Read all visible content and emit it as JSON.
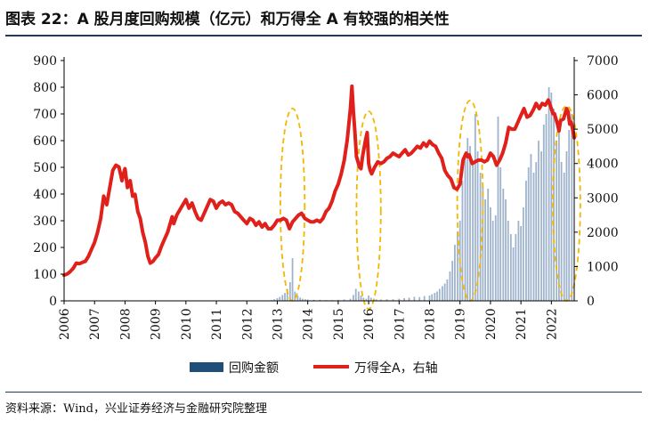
{
  "title": "图表 22：A 股月度回购规模（亿元）和万得全 A 有较强的相关性",
  "source": "资料来源：Wind，兴业证券经济与金融研究院整理",
  "colors": {
    "bars": "#9fb4cc",
    "legend_bar": "#1f4e79",
    "line": "#e0201b",
    "ellipse": "#f2b800",
    "rule": "#1f3864"
  },
  "chart_data": {
    "type": "bar+line",
    "x_ticks": [
      "2006",
      "2007",
      "2008",
      "2009",
      "2010",
      "2011",
      "2012",
      "2013",
      "2014",
      "2015",
      "2016",
      "2017",
      "2018",
      "2019",
      "2020",
      "2021",
      "2022"
    ],
    "y_left_ticks": [
      "0",
      "100",
      "200",
      "300",
      "400",
      "500",
      "600",
      "700",
      "800",
      "900"
    ],
    "y_right_ticks": [
      "0",
      "1000",
      "2000",
      "3000",
      "4000",
      "5000",
      "6000",
      "7000"
    ],
    "ylim_left": [
      0,
      900
    ],
    "ylim_right": [
      0,
      7000
    ],
    "xlim": [
      2006.0,
      2022.75
    ],
    "legend": {
      "position": "bottom",
      "bar_label": "回购金额",
      "line_label": "万得全A，右轴"
    },
    "series_bar": {
      "name": "回购金额",
      "axis": "left",
      "points": [
        [
          2012.8,
          3
        ],
        [
          2012.9,
          6
        ],
        [
          2013.0,
          10
        ],
        [
          2013.08,
          15
        ],
        [
          2013.17,
          22
        ],
        [
          2013.25,
          30
        ],
        [
          2013.33,
          45
        ],
        [
          2013.42,
          70
        ],
        [
          2013.5,
          160
        ],
        [
          2013.58,
          35
        ],
        [
          2013.67,
          20
        ],
        [
          2013.75,
          12
        ],
        [
          2013.83,
          8
        ],
        [
          2013.92,
          6
        ],
        [
          2014.0,
          5
        ],
        [
          2014.2,
          4
        ],
        [
          2014.4,
          4
        ],
        [
          2014.6,
          3
        ],
        [
          2014.8,
          3
        ],
        [
          2015.0,
          4
        ],
        [
          2015.2,
          5
        ],
        [
          2015.4,
          8
        ],
        [
          2015.5,
          22
        ],
        [
          2015.58,
          45
        ],
        [
          2015.67,
          35
        ],
        [
          2015.75,
          20
        ],
        [
          2015.83,
          12
        ],
        [
          2015.92,
          8
        ],
        [
          2016.0,
          20
        ],
        [
          2016.08,
          12
        ],
        [
          2016.17,
          8
        ],
        [
          2016.25,
          6
        ],
        [
          2016.4,
          5
        ],
        [
          2016.6,
          6
        ],
        [
          2016.8,
          6
        ],
        [
          2017.0,
          8
        ],
        [
          2017.17,
          10
        ],
        [
          2017.33,
          12
        ],
        [
          2017.5,
          15
        ],
        [
          2017.67,
          14
        ],
        [
          2017.83,
          18
        ],
        [
          2018.0,
          20
        ],
        [
          2018.08,
          25
        ],
        [
          2018.17,
          30
        ],
        [
          2018.25,
          35
        ],
        [
          2018.33,
          45
        ],
        [
          2018.42,
          55
        ],
        [
          2018.5,
          65
        ],
        [
          2018.58,
          80
        ],
        [
          2018.67,
          110
        ],
        [
          2018.75,
          150
        ],
        [
          2018.83,
          210
        ],
        [
          2018.92,
          260
        ],
        [
          2019.0,
          300
        ],
        [
          2019.08,
          450
        ],
        [
          2019.17,
          540
        ],
        [
          2019.25,
          610
        ],
        [
          2019.33,
          580
        ],
        [
          2019.42,
          520
        ],
        [
          2019.5,
          700
        ],
        [
          2019.58,
          560
        ],
        [
          2019.67,
          480
        ],
        [
          2019.75,
          430
        ],
        [
          2019.83,
          380
        ],
        [
          2019.92,
          420
        ],
        [
          2020.0,
          350
        ],
        [
          2020.08,
          300
        ],
        [
          2020.17,
          320
        ],
        [
          2020.25,
          690
        ],
        [
          2020.33,
          500
        ],
        [
          2020.42,
          420
        ],
        [
          2020.5,
          380
        ],
        [
          2020.58,
          300
        ],
        [
          2020.67,
          250
        ],
        [
          2020.75,
          200
        ],
        [
          2020.83,
          250
        ],
        [
          2020.92,
          300
        ],
        [
          2021.0,
          280
        ],
        [
          2021.08,
          350
        ],
        [
          2021.17,
          450
        ],
        [
          2021.25,
          500
        ],
        [
          2021.33,
          550
        ],
        [
          2021.42,
          480
        ],
        [
          2021.5,
          520
        ],
        [
          2021.58,
          600
        ],
        [
          2021.67,
          560
        ],
        [
          2021.75,
          660
        ],
        [
          2021.83,
          700
        ],
        [
          2021.92,
          800
        ],
        [
          2022.0,
          780
        ],
        [
          2022.08,
          720
        ],
        [
          2022.17,
          600
        ],
        [
          2022.25,
          650
        ],
        [
          2022.33,
          520
        ],
        [
          2022.42,
          480
        ],
        [
          2022.5,
          560
        ],
        [
          2022.58,
          640
        ],
        [
          2022.67,
          700
        ]
      ]
    },
    "series_line": {
      "name": "万得全A，右轴",
      "axis": "right",
      "points": [
        [
          2006.0,
          750
        ],
        [
          2006.1,
          780
        ],
        [
          2006.2,
          850
        ],
        [
          2006.3,
          950
        ],
        [
          2006.4,
          1100
        ],
        [
          2006.5,
          1080
        ],
        [
          2006.6,
          1120
        ],
        [
          2006.7,
          1150
        ],
        [
          2006.8,
          1300
        ],
        [
          2006.9,
          1500
        ],
        [
          2007.0,
          1700
        ],
        [
          2007.1,
          2000
        ],
        [
          2007.2,
          2400
        ],
        [
          2007.3,
          3050
        ],
        [
          2007.35,
          2900
        ],
        [
          2007.4,
          2800
        ],
        [
          2007.5,
          3300
        ],
        [
          2007.6,
          3800
        ],
        [
          2007.7,
          3950
        ],
        [
          2007.8,
          3900
        ],
        [
          2007.9,
          3500
        ],
        [
          2007.95,
          3700
        ],
        [
          2008.0,
          3850
        ],
        [
          2008.08,
          3300
        ],
        [
          2008.17,
          3500
        ],
        [
          2008.25,
          3050
        ],
        [
          2008.33,
          3100
        ],
        [
          2008.42,
          2600
        ],
        [
          2008.5,
          2400
        ],
        [
          2008.58,
          2000
        ],
        [
          2008.67,
          1700
        ],
        [
          2008.75,
          1300
        ],
        [
          2008.83,
          1100
        ],
        [
          2008.92,
          1150
        ],
        [
          2009.0,
          1250
        ],
        [
          2009.1,
          1350
        ],
        [
          2009.2,
          1600
        ],
        [
          2009.3,
          1800
        ],
        [
          2009.4,
          2000
        ],
        [
          2009.5,
          2300
        ],
        [
          2009.55,
          2450
        ],
        [
          2009.6,
          2250
        ],
        [
          2009.7,
          2500
        ],
        [
          2009.8,
          2650
        ],
        [
          2009.9,
          2800
        ],
        [
          2010.0,
          2950
        ],
        [
          2010.1,
          2700
        ],
        [
          2010.2,
          2850
        ],
        [
          2010.3,
          2600
        ],
        [
          2010.4,
          2400
        ],
        [
          2010.5,
          2350
        ],
        [
          2010.6,
          2550
        ],
        [
          2010.7,
          2750
        ],
        [
          2010.8,
          2950
        ],
        [
          2010.9,
          2900
        ],
        [
          2011.0,
          2700
        ],
        [
          2011.1,
          2850
        ],
        [
          2011.2,
          2900
        ],
        [
          2011.3,
          2800
        ],
        [
          2011.4,
          2850
        ],
        [
          2011.5,
          2800
        ],
        [
          2011.6,
          2600
        ],
        [
          2011.7,
          2550
        ],
        [
          2011.8,
          2450
        ],
        [
          2011.9,
          2350
        ],
        [
          2012.0,
          2250
        ],
        [
          2012.1,
          2400
        ],
        [
          2012.2,
          2350
        ],
        [
          2012.3,
          2200
        ],
        [
          2012.4,
          2300
        ],
        [
          2012.5,
          2150
        ],
        [
          2012.6,
          2250
        ],
        [
          2012.7,
          2100
        ],
        [
          2012.8,
          2100
        ],
        [
          2012.9,
          2200
        ],
        [
          2013.0,
          2350
        ],
        [
          2013.1,
          2350
        ],
        [
          2013.2,
          2400
        ],
        [
          2013.3,
          2350
        ],
        [
          2013.4,
          2100
        ],
        [
          2013.5,
          2300
        ],
        [
          2013.6,
          2400
        ],
        [
          2013.7,
          2500
        ],
        [
          2013.8,
          2550
        ],
        [
          2013.9,
          2400
        ],
        [
          2014.0,
          2350
        ],
        [
          2014.1,
          2300
        ],
        [
          2014.2,
          2300
        ],
        [
          2014.3,
          2350
        ],
        [
          2014.4,
          2300
        ],
        [
          2014.5,
          2400
        ],
        [
          2014.6,
          2600
        ],
        [
          2014.7,
          2700
        ],
        [
          2014.8,
          2900
        ],
        [
          2014.9,
          3200
        ],
        [
          2015.0,
          3400
        ],
        [
          2015.1,
          3700
        ],
        [
          2015.2,
          4100
        ],
        [
          2015.3,
          4700
        ],
        [
          2015.4,
          5600
        ],
        [
          2015.45,
          6250
        ],
        [
          2015.5,
          5500
        ],
        [
          2015.55,
          4900
        ],
        [
          2015.6,
          4200
        ],
        [
          2015.7,
          3900
        ],
        [
          2015.75,
          3850
        ],
        [
          2015.8,
          4200
        ],
        [
          2015.9,
          4700
        ],
        [
          2015.95,
          4900
        ],
        [
          2016.0,
          4000
        ],
        [
          2016.05,
          3800
        ],
        [
          2016.1,
          3700
        ],
        [
          2016.2,
          3900
        ],
        [
          2016.3,
          4050
        ],
        [
          2016.4,
          4000
        ],
        [
          2016.5,
          4050
        ],
        [
          2016.6,
          4150
        ],
        [
          2016.7,
          4200
        ],
        [
          2016.8,
          4300
        ],
        [
          2016.9,
          4250
        ],
        [
          2017.0,
          4200
        ],
        [
          2017.1,
          4300
        ],
        [
          2017.2,
          4400
        ],
        [
          2017.3,
          4250
        ],
        [
          2017.4,
          4300
        ],
        [
          2017.5,
          4400
        ],
        [
          2017.6,
          4500
        ],
        [
          2017.7,
          4450
        ],
        [
          2017.8,
          4600
        ],
        [
          2017.9,
          4500
        ],
        [
          2018.0,
          4650
        ],
        [
          2018.1,
          4550
        ],
        [
          2018.2,
          4500
        ],
        [
          2018.3,
          4300
        ],
        [
          2018.4,
          4150
        ],
        [
          2018.5,
          3800
        ],
        [
          2018.6,
          3650
        ],
        [
          2018.7,
          3550
        ],
        [
          2018.8,
          3300
        ],
        [
          2018.9,
          3250
        ],
        [
          2019.0,
          3400
        ],
        [
          2019.1,
          4100
        ],
        [
          2019.2,
          4300
        ],
        [
          2019.25,
          4200
        ],
        [
          2019.3,
          4250
        ],
        [
          2019.4,
          4000
        ],
        [
          2019.5,
          4050
        ],
        [
          2019.6,
          4100
        ],
        [
          2019.7,
          4100
        ],
        [
          2019.8,
          4050
        ],
        [
          2019.9,
          4100
        ],
        [
          2020.0,
          4300
        ],
        [
          2020.1,
          4200
        ],
        [
          2020.2,
          3950
        ],
        [
          2020.3,
          4100
        ],
        [
          2020.4,
          4300
        ],
        [
          2020.5,
          4600
        ],
        [
          2020.6,
          5050
        ],
        [
          2020.7,
          5000
        ],
        [
          2020.8,
          5000
        ],
        [
          2020.9,
          5200
        ],
        [
          2021.0,
          5400
        ],
        [
          2021.1,
          5600
        ],
        [
          2021.2,
          5350
        ],
        [
          2021.3,
          5400
        ],
        [
          2021.4,
          5550
        ],
        [
          2021.5,
          5750
        ],
        [
          2021.6,
          5600
        ],
        [
          2021.7,
          5750
        ],
        [
          2021.8,
          5700
        ],
        [
          2021.9,
          5850
        ],
        [
          2022.0,
          5600
        ],
        [
          2022.05,
          5450
        ],
        [
          2022.1,
          5450
        ],
        [
          2022.2,
          5150
        ],
        [
          2022.25,
          4950
        ],
        [
          2022.3,
          5250
        ],
        [
          2022.4,
          5300
        ],
        [
          2022.5,
          5600
        ],
        [
          2022.55,
          5500
        ],
        [
          2022.6,
          5150
        ],
        [
          2022.65,
          5200
        ],
        [
          2022.7,
          5000
        ],
        [
          2022.75,
          4750
        ]
      ]
    },
    "highlight_ellipses": [
      {
        "x_center": 2013.5,
        "x_halfwidth": 0.4,
        "y_top_left": 720,
        "y_bottom_left": 0
      },
      {
        "x_center": 2016.0,
        "x_halfwidth": 0.4,
        "y_top_left": 710,
        "y_bottom_left": -30
      },
      {
        "x_center": 2019.33,
        "x_halfwidth": 0.42,
        "y_top_left": 750,
        "y_bottom_left": 0
      },
      {
        "x_center": 2022.5,
        "x_halfwidth": 0.45,
        "y_top_left": 730,
        "y_bottom_left": 0
      }
    ]
  }
}
